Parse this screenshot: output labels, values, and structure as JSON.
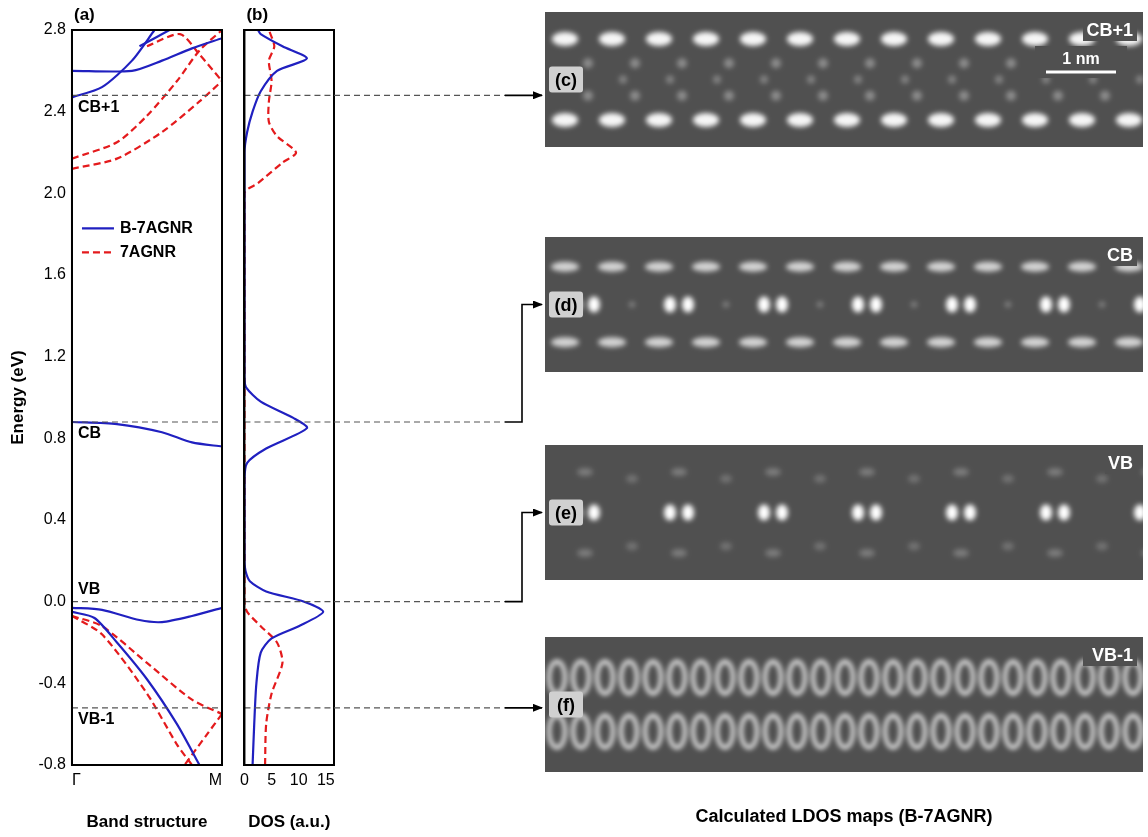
{
  "chart_data": [
    {
      "type": "line",
      "panel": "(a)",
      "xlabel": "Band structure",
      "ylabel": "Energy (eV)",
      "xlim": [
        0,
        1
      ],
      "xticks": [
        {
          "value": 0,
          "label": "Γ"
        },
        {
          "value": 1,
          "label": "M"
        }
      ],
      "ylim": [
        -0.8,
        2.8
      ],
      "yticks": [
        -0.8,
        -0.4,
        {
          "value": 0,
          "label": "0.0"
        },
        0.4,
        0.8,
        1.2,
        1.6,
        {
          "value": 2,
          "label": "2.0"
        },
        2.4,
        2.8
      ],
      "grid": false,
      "legend": "left",
      "series": [
        {
          "name": "B-7AGNR",
          "color": "#2020c0",
          "line_style": "solid",
          "bands": [
            {
              "x": [
                0,
                0.2,
                0.4,
                0.55
              ],
              "values": [
                2.47,
                2.52,
                2.65,
                2.8
              ]
            },
            {
              "x": [
                0,
                0.4,
                0.6,
                0.8,
                1
              ],
              "values": [
                2.6,
                2.6,
                2.65,
                2.71,
                2.76
              ]
            },
            {
              "x": [
                0.45,
                0.65
              ],
              "values": [
                2.72,
                2.8
              ]
            },
            {
              "x": [
                0,
                0.3,
                0.6,
                0.8,
                1
              ],
              "values": [
                0.88,
                0.87,
                0.83,
                0.78,
                0.76
              ]
            },
            {
              "x": [
                0,
                0.2,
                0.45,
                0.6,
                0.8,
                1
              ],
              "values": [
                -0.03,
                -0.04,
                -0.09,
                -0.1,
                -0.07,
                -0.03
              ]
            },
            {
              "x": [
                0,
                0.15,
                0.3,
                0.5,
                0.7,
                0.85
              ],
              "values": [
                -0.05,
                -0.08,
                -0.2,
                -0.38,
                -0.6,
                -0.8
              ]
            }
          ]
        },
        {
          "name": "7AGNR",
          "color": "#e41a1c",
          "line_style": "dashed",
          "bands": [
            {
              "x": [
                0,
                0.3,
                0.6,
                0.85,
                1
              ],
              "values": [
                2.12,
                2.17,
                2.3,
                2.45,
                2.55
              ]
            },
            {
              "x": [
                0,
                0.3,
                0.5,
                0.7,
                0.85,
                1
              ],
              "values": [
                2.17,
                2.25,
                2.38,
                2.55,
                2.7,
                2.8
              ]
            },
            {
              "x": [
                0.5,
                0.72,
                0.85,
                1
              ],
              "values": [
                2.72,
                2.78,
                2.68,
                2.55
              ]
            },
            {
              "x": [
                0,
                0.2,
                0.5,
                0.8,
                1
              ],
              "values": [
                -0.07,
                -0.12,
                -0.3,
                -0.48,
                -0.55
              ]
            },
            {
              "x": [
                0,
                0.2,
                0.5,
                0.7,
                0.8
              ],
              "values": [
                -0.07,
                -0.16,
                -0.45,
                -0.7,
                -0.8
              ]
            },
            {
              "x": [
                1,
                0.9,
                0.75
              ],
              "values": [
                -0.55,
                -0.65,
                -0.8
              ]
            }
          ]
        }
      ],
      "annotations": [
        {
          "text": "CB+1",
          "y": 2.48
        },
        {
          "text": "CB",
          "y": 0.88
        },
        {
          "text": "VB",
          "y": 0
        },
        {
          "text": "VB-1",
          "y": -0.52
        }
      ]
    },
    {
      "type": "line",
      "panel": "(b)",
      "xlabel": "DOS (a.u.)",
      "xlim": [
        0,
        16.5
      ],
      "xticks": [
        0,
        5,
        10,
        15
      ],
      "ylim": [
        -0.8,
        2.8
      ],
      "tick_labels": "x",
      "grid": false,
      "series": [
        {
          "name": "B-7AGNR",
          "color": "#2020c0",
          "line_style": "solid",
          "x": [
            1.5,
            1.8,
            2.2,
            3,
            5,
            10,
            14.5,
            11,
            4,
            1,
            0.2,
            0,
            0,
            0.5,
            4,
            11.5,
            9,
            3,
            0.3,
            0,
            0,
            0.5,
            1.5,
            3,
            6,
            11.5,
            7,
            3,
            2.5
          ],
          "values": [
            -0.8,
            -0.6,
            -0.4,
            -0.25,
            -0.18,
            -0.12,
            -0.05,
            0,
            0.05,
            0.1,
            0.15,
            0.2,
            0.6,
            0.68,
            0.75,
            0.85,
            0.9,
            0.98,
            1.05,
            1.1,
            2.2,
            2.3,
            2.4,
            2.5,
            2.6,
            2.66,
            2.72,
            2.78,
            2.8
          ]
        },
        {
          "name": "7AGNR",
          "color": "#e41a1c",
          "line_style": "dashed",
          "x": [
            3.8,
            4,
            5,
            7,
            6,
            3,
            0.5,
            0,
            0,
            2.5,
            7,
            9.5,
            6,
            4.5,
            4.5,
            5,
            4.5,
            5.5,
            4.5
          ],
          "values": [
            -0.8,
            -0.6,
            -0.45,
            -0.3,
            -0.2,
            -0.12,
            -0.05,
            0,
            2,
            2.05,
            2.15,
            2.2,
            2.28,
            2.35,
            2.45,
            2.55,
            2.65,
            2.72,
            2.8
          ]
        }
      ]
    }
  ],
  "ldos_maps": {
    "title": "Calculated LDOS maps (B-7AGNR)",
    "scale_bar": "1 nm",
    "panels": [
      {
        "letter": "(c)",
        "label": "CB+1"
      },
      {
        "letter": "(d)",
        "label": "CB"
      },
      {
        "letter": "(e)",
        "label": "VB"
      },
      {
        "letter": "(f)",
        "label": "VB-1"
      }
    ]
  }
}
